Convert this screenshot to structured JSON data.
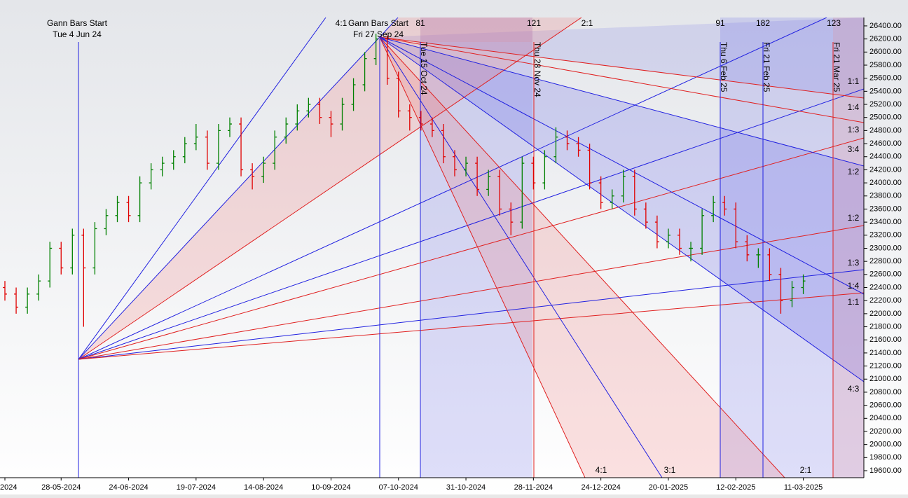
{
  "chart_data": {
    "type": "ohlc",
    "categories": [
      "2024",
      null,
      null,
      null,
      null,
      "28-05-2024",
      null,
      null,
      null,
      null,
      null,
      "24-06-2024",
      null,
      null,
      null,
      null,
      null,
      "19-07-2024",
      null,
      null,
      null,
      null,
      null,
      "14-08-2024",
      null,
      null,
      null,
      null,
      null,
      "10-09-2024",
      null,
      null,
      null,
      null,
      null,
      "07-10-2024",
      null,
      null,
      null,
      null,
      null,
      "31-10-2024",
      null,
      null,
      null,
      null,
      null,
      "28-11-2024",
      null,
      null,
      null,
      null,
      null,
      "24-12-2024",
      null,
      null,
      null,
      null,
      null,
      "20-01-2025",
      null,
      null,
      null,
      null,
      null,
      "12-02-2025",
      null,
      null,
      null,
      null,
      null,
      "11-03-2025",
      null,
      null,
      null,
      null,
      null
    ],
    "open": [
      22400,
      22300,
      22100,
      22300,
      22500,
      23000,
      22700,
      23200,
      22700,
      23300,
      23500,
      23700,
      23500,
      24000,
      24200,
      24300,
      24400,
      24600,
      24700,
      24300,
      24800,
      24900,
      24200,
      24100,
      24300,
      24700,
      24900,
      25100,
      25200,
      25000,
      24900,
      25200,
      25500,
      25900,
      26200,
      25600,
      25100,
      25000,
      24900,
      24800,
      24400,
      24200,
      24300,
      23900,
      24100,
      23600,
      23400,
      24300,
      24000,
      24400,
      24700,
      24600,
      24500,
      24000,
      23700,
      23800,
      24100,
      23600,
      23400,
      23100,
      23200,
      23000,
      23000,
      23500,
      23700,
      23600,
      23100,
      22900,
      22900,
      22600,
      22200,
      22400,
      null,
      null,
      null,
      null,
      null
    ],
    "high": [
      22500,
      22400,
      22400,
      22600,
      23100,
      23100,
      23300,
      23300,
      23400,
      23600,
      23800,
      23800,
      24100,
      24300,
      24400,
      24500,
      24700,
      24900,
      24800,
      24900,
      25000,
      25000,
      24300,
      24400,
      24800,
      25000,
      25200,
      25300,
      25300,
      25100,
      25300,
      25600,
      26000,
      26280,
      26250,
      25700,
      25200,
      25100,
      25000,
      24900,
      24500,
      24400,
      24400,
      24200,
      24200,
      23700,
      24400,
      24400,
      24500,
      24850,
      24800,
      24700,
      24600,
      24100,
      23900,
      24200,
      24200,
      23700,
      23500,
      23300,
      23300,
      23100,
      23600,
      23800,
      23800,
      23700,
      23200,
      23000,
      23000,
      22700,
      22500,
      22600,
      null,
      null,
      null,
      null,
      null
    ],
    "low": [
      22200,
      22000,
      22000,
      22200,
      22400,
      22600,
      22600,
      21800,
      22600,
      23200,
      23400,
      23400,
      23400,
      23900,
      24100,
      24200,
      24300,
      24500,
      24200,
      24200,
      24700,
      24100,
      23900,
      24000,
      24200,
      24600,
      24800,
      25000,
      24900,
      24700,
      24800,
      25100,
      25400,
      25800,
      25500,
      25000,
      24800,
      24800,
      24700,
      24300,
      24100,
      24100,
      23800,
      23800,
      23500,
      23200,
      23300,
      23900,
      23900,
      24300,
      24500,
      24400,
      23900,
      23600,
      23600,
      23700,
      23500,
      23300,
      23000,
      23000,
      22900,
      22800,
      22900,
      23400,
      23500,
      23000,
      22800,
      22700,
      22500,
      22000,
      22100,
      22300,
      null,
      null,
      null,
      null,
      null
    ],
    "close": [
      22300,
      22100,
      22300,
      22500,
      23000,
      22700,
      23200,
      22700,
      23300,
      23500,
      23700,
      23500,
      24000,
      24200,
      24300,
      24400,
      24600,
      24700,
      24300,
      24800,
      24900,
      24200,
      24100,
      24300,
      24700,
      24900,
      25100,
      25200,
      25000,
      24900,
      25200,
      25500,
      25900,
      26200,
      25600,
      25100,
      25000,
      24900,
      24800,
      24400,
      24200,
      24300,
      23900,
      24100,
      23600,
      23400,
      24300,
      24000,
      24400,
      24700,
      24600,
      24500,
      24000,
      23700,
      23800,
      24100,
      23600,
      23400,
      23100,
      23200,
      23000,
      23000,
      23500,
      23700,
      23600,
      23100,
      22900,
      22900,
      22600,
      22200,
      22400,
      22500,
      null,
      null,
      null,
      null,
      null
    ],
    "up_color": "#008000",
    "down_color": "#e00000",
    "ylim": [
      19493,
      26528
    ],
    "yticks": [
      {
        "value": 19600,
        "label": "19600.00"
      },
      {
        "value": 19800,
        "label": "19800.00"
      },
      {
        "value": 20000,
        "label": "20000.00"
      },
      {
        "value": 20200,
        "label": "20200.00"
      },
      {
        "value": 20400,
        "label": "20400.00"
      },
      {
        "value": 20600,
        "label": "20600.00"
      },
      {
        "value": 20800,
        "label": "20800.00"
      },
      {
        "value": 21000,
        "label": "21000.00"
      },
      {
        "value": 21200,
        "label": "21200.00"
      },
      {
        "value": 21400,
        "label": "21400.00"
      },
      {
        "value": 21600,
        "label": "21600.00"
      },
      {
        "value": 21800,
        "label": "21800.00"
      },
      {
        "value": 22000,
        "label": "22000.00"
      },
      {
        "value": 22200,
        "label": "22200.00"
      },
      {
        "value": 22400,
        "label": "22400.00"
      },
      {
        "value": 22600,
        "label": "22600.00"
      },
      {
        "value": 22800,
        "label": "22800.00"
      },
      {
        "value": 23000,
        "label": "23000.00"
      },
      {
        "value": 23200,
        "label": "23200.00"
      },
      {
        "value": 23400,
        "label": "23400.00"
      },
      {
        "value": 23600,
        "label": "23600.00"
      },
      {
        "value": 23800,
        "label": "23800.00"
      },
      {
        "value": 24000,
        "label": "24000.00"
      },
      {
        "value": 24200,
        "label": "24200.00"
      },
      {
        "value": 24400,
        "label": "24400.00"
      },
      {
        "value": 24600,
        "label": "24600.00"
      },
      {
        "value": 24800,
        "label": "24800.00"
      },
      {
        "value": 25000,
        "label": "25000.00"
      },
      {
        "value": 25200,
        "label": "25200.00"
      },
      {
        "value": 25400,
        "label": "25400.00"
      },
      {
        "value": 25600,
        "label": "25600.00"
      },
      {
        "value": 25800,
        "label": "25800.00"
      },
      {
        "value": 26000,
        "label": "26000.00"
      },
      {
        "value": 26200,
        "label": "26200.00"
      },
      {
        "value": 26400,
        "label": "26400.00"
      }
    ],
    "annotations": {
      "top": [
        "Gann Bars Start",
        "Tue 4 Jun 24",
        "4:1",
        "Gann Bars Start",
        "Fri 27 Sep 24",
        "81",
        "121",
        "2:1",
        "91",
        "182",
        "123"
      ],
      "vertical": [
        "Tue 15 Oct 24",
        "Thu 28 Nov 24",
        "Thu 6 Feb 25",
        "Fri 21 Feb 25",
        "Fri 21 Mar 25"
      ],
      "right": [
        "1:1",
        "1:4",
        "1:3",
        "3:4",
        "1:2",
        "1:2",
        "1:3",
        "1:4",
        "1:1",
        "4:3"
      ],
      "bottom": [
        "4:1",
        "3:1",
        "2:1"
      ]
    }
  }
}
